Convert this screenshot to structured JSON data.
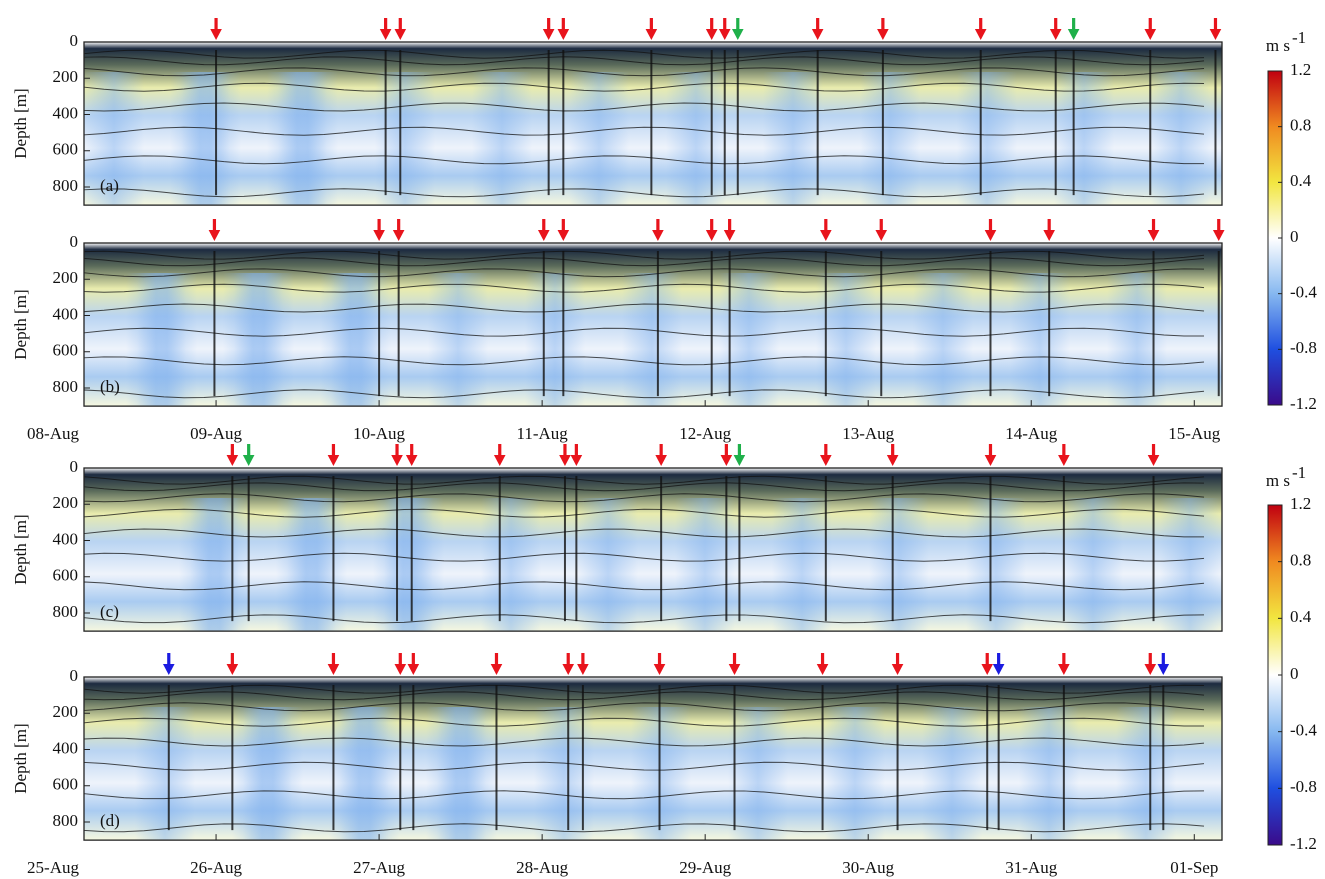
{
  "chart_data": [
    {
      "type": "heatmap",
      "label": "(a)",
      "ylabel": "Depth [m]",
      "ylim": [
        0,
        900
      ],
      "yticks": [
        0,
        200,
        400,
        600,
        800
      ],
      "xlim": [
        0.19,
        7.17
      ],
      "events": {
        "x": [
          1.0,
          2.04,
          2.13,
          3.04,
          3.13,
          3.67,
          4.04,
          4.12,
          4.2,
          4.69,
          5.09,
          5.69,
          6.15,
          6.26,
          6.73,
          7.13
        ],
        "colors": [
          "#e8141c",
          "#e8141c",
          "#e8141c",
          "#e8141c",
          "#e8141c",
          "#e8141c",
          "#e8141c",
          "#e8141c",
          "#1fb04a",
          "#e8141c",
          "#e8141c",
          "#e8141c",
          "#e8141c",
          "#1fb04a",
          "#e8141c",
          "#e8141c"
        ]
      },
      "colorbar": {
        "unit": "m s",
        "unit_exp": "-1",
        "lim": [
          -1.2,
          1.2
        ],
        "ticks": [
          -1.2,
          -0.8,
          -0.4,
          0,
          0.4,
          0.8,
          1.2
        ],
        "colors": [
          "#3a0a8a",
          "#1f4fe0",
          "#86b8f0",
          "#ffffff",
          "#f2e640",
          "#f08a20",
          "#c00010"
        ]
      }
    },
    {
      "type": "heatmap",
      "label": "(b)",
      "ylabel": "Depth [m]",
      "ylim": [
        0,
        900
      ],
      "yticks": [
        0,
        200,
        400,
        600,
        800
      ],
      "xlim": [
        0.19,
        7.17
      ],
      "xticks": [
        {
          "value": 0,
          "label": "08-Aug"
        },
        {
          "value": 1,
          "label": "09-Aug"
        },
        {
          "value": 2,
          "label": "10-Aug"
        },
        {
          "value": 3,
          "label": "11-Aug"
        },
        {
          "value": 4,
          "label": "12-Aug"
        },
        {
          "value": 5,
          "label": "13-Aug"
        },
        {
          "value": 6,
          "label": "14-Aug"
        },
        {
          "value": 7,
          "label": "15-Aug"
        }
      ],
      "events": {
        "x": [
          0.99,
          2.0,
          2.12,
          3.01,
          3.13,
          3.71,
          4.04,
          4.15,
          4.74,
          5.08,
          5.75,
          6.11,
          6.75,
          7.15
        ],
        "colors": [
          "#e8141c",
          "#e8141c",
          "#e8141c",
          "#e8141c",
          "#e8141c",
          "#e8141c",
          "#e8141c",
          "#e8141c",
          "#e8141c",
          "#e8141c",
          "#e8141c",
          "#e8141c",
          "#e8141c",
          "#e8141c"
        ]
      }
    },
    {
      "type": "heatmap",
      "label": "(c)",
      "ylabel": "Depth [m]",
      "ylim": [
        0,
        900
      ],
      "yticks": [
        0,
        200,
        400,
        600,
        800
      ],
      "xlim": [
        0.19,
        7.17
      ],
      "events": {
        "x": [
          1.1,
          1.2,
          1.72,
          2.11,
          2.2,
          2.74,
          3.14,
          3.21,
          3.73,
          4.13,
          4.21,
          4.74,
          5.15,
          5.75,
          6.2,
          6.75
        ],
        "colors": [
          "#e8141c",
          "#1fb04a",
          "#e8141c",
          "#e8141c",
          "#e8141c",
          "#e8141c",
          "#e8141c",
          "#e8141c",
          "#e8141c",
          "#e8141c",
          "#1fb04a",
          "#e8141c",
          "#e8141c",
          "#e8141c",
          "#e8141c",
          "#e8141c"
        ]
      },
      "colorbar": {
        "unit": "m s",
        "unit_exp": "-1",
        "lim": [
          -1.2,
          1.2
        ],
        "ticks": [
          -1.2,
          -0.8,
          -0.4,
          0,
          0.4,
          0.8,
          1.2
        ],
        "colors": [
          "#3a0a8a",
          "#1f4fe0",
          "#86b8f0",
          "#ffffff",
          "#f2e640",
          "#f08a20",
          "#c00010"
        ]
      }
    },
    {
      "type": "heatmap",
      "label": "(d)",
      "ylabel": "Depth [m]",
      "ylim": [
        0,
        900
      ],
      "yticks": [
        0,
        200,
        400,
        600,
        800
      ],
      "xlim": [
        0.19,
        7.17
      ],
      "xticks": [
        {
          "value": 0,
          "label": "25-Aug"
        },
        {
          "value": 1,
          "label": "26-Aug"
        },
        {
          "value": 2,
          "label": "27-Aug"
        },
        {
          "value": 3,
          "label": "28-Aug"
        },
        {
          "value": 4,
          "label": "29-Aug"
        },
        {
          "value": 5,
          "label": "30-Aug"
        },
        {
          "value": 6,
          "label": "31-Aug"
        },
        {
          "value": 7,
          "label": "01-Sep"
        }
      ],
      "events": {
        "x": [
          0.71,
          1.1,
          1.72,
          2.13,
          2.21,
          2.72,
          3.16,
          3.25,
          3.72,
          4.18,
          4.72,
          5.18,
          5.73,
          5.8,
          6.2,
          6.73,
          6.81
        ],
        "colors": [
          "#1b1be0",
          "#e8141c",
          "#e8141c",
          "#e8141c",
          "#e8141c",
          "#e8141c",
          "#e8141c",
          "#e8141c",
          "#e8141c",
          "#e8141c",
          "#e8141c",
          "#e8141c",
          "#e8141c",
          "#1b1be0",
          "#e8141c",
          "#e8141c",
          "#1b1be0"
        ]
      }
    }
  ]
}
